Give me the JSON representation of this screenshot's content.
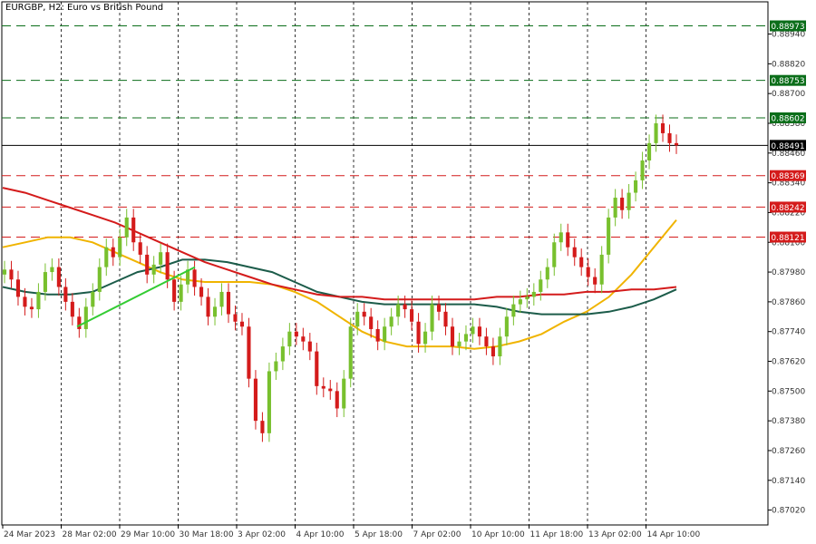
{
  "window": {
    "title": "EURGBP, H2:  Euro vs British Pound"
  },
  "chart_data": {
    "type": "candlestick",
    "symbol": "EURGBP",
    "timeframe": "H2",
    "title": "EURGBP, H2:  Euro vs British Pound",
    "ylim": [
      0.8696,
      0.8907
    ],
    "y_ticks": [
      "0.88940",
      "0.88820",
      "0.88700",
      "0.88580",
      "0.88460",
      "0.88340",
      "0.88220",
      "0.88100",
      "0.87980",
      "0.87860",
      "0.87740",
      "0.87620",
      "0.87500",
      "0.87380",
      "0.87260",
      "0.87140",
      "0.87020"
    ],
    "x_labels": [
      "24 Mar 2023",
      "28 Mar 02:00",
      "29 Mar 10:00",
      "30 Mar 18:00",
      "3 Apr 02:00",
      "4 Apr 10:00",
      "5 Apr 18:00",
      "7 Apr 02:00",
      "10 Apr 10:00",
      "11 Apr 18:00",
      "13 Apr 02:00",
      "14 Apr 10:00"
    ],
    "current_price": {
      "label": "0.88491",
      "value": 0.88491,
      "color": "#000000"
    },
    "levels": [
      {
        "label": "0.88973",
        "value": 0.88973,
        "kind": "resistance",
        "color": "#0b6e1a"
      },
      {
        "label": "0.88753",
        "value": 0.88753,
        "kind": "resistance",
        "color": "#0b6e1a"
      },
      {
        "label": "0.88602",
        "value": 0.88602,
        "kind": "resistance",
        "color": "#0b6e1a"
      },
      {
        "label": "0.88369",
        "value": 0.88369,
        "kind": "support",
        "color": "#d41b1b"
      },
      {
        "label": "0.88242",
        "value": 0.88242,
        "kind": "support",
        "color": "#d41b1b"
      },
      {
        "label": "0.88121",
        "value": 0.88121,
        "kind": "support",
        "color": "#d41b1b"
      }
    ],
    "candles_close": [
      0.8799,
      0.8795,
      0.8788,
      0.8784,
      0.8783,
      0.879,
      0.8798,
      0.88,
      0.8792,
      0.8786,
      0.878,
      0.8775,
      0.8784,
      0.879,
      0.88,
      0.8808,
      0.8804,
      0.8812,
      0.882,
      0.881,
      0.8805,
      0.8797,
      0.8801,
      0.8806,
      0.8795,
      0.8786,
      0.8793,
      0.8799,
      0.8792,
      0.8788,
      0.878,
      0.8784,
      0.879,
      0.8781,
      0.8778,
      0.8776,
      0.8755,
      0.8738,
      0.8733,
      0.8758,
      0.8762,
      0.8768,
      0.8774,
      0.8772,
      0.877,
      0.8766,
      0.8752,
      0.8751,
      0.875,
      0.8743,
      0.8755,
      0.8776,
      0.8782,
      0.878,
      0.8775,
      0.877,
      0.8776,
      0.878,
      0.8785,
      0.8783,
      0.8778,
      0.8769,
      0.8774,
      0.8785,
      0.8782,
      0.8776,
      0.8768,
      0.877,
      0.8773,
      0.8776,
      0.8772,
      0.8768,
      0.8764,
      0.8772,
      0.878,
      0.8785,
      0.8787,
      0.8788,
      0.879,
      0.8795,
      0.88,
      0.881,
      0.8814,
      0.8808,
      0.8804,
      0.88,
      0.8796,
      0.8793,
      0.8805,
      0.882,
      0.8828,
      0.8823,
      0.883,
      0.8835,
      0.8843,
      0.885,
      0.8858,
      0.8854,
      0.885,
      0.88491
    ],
    "moving_averages": [
      {
        "color": "#f0b400",
        "values": [
          0.8808,
          0.881,
          0.8812,
          0.8812,
          0.881,
          0.8806,
          0.8802,
          0.8798,
          0.8795,
          0.8794,
          0.8794,
          0.8794,
          0.8793,
          0.879,
          0.8786,
          0.878,
          0.8774,
          0.877,
          0.8768,
          0.8768,
          0.8768,
          0.8767,
          0.8768,
          0.877,
          0.8773,
          0.8778,
          0.8782,
          0.8788,
          0.8797,
          0.8808,
          0.8819
        ]
      },
      {
        "color": "#1c5c4a",
        "values": [
          0.8792,
          0.879,
          0.8789,
          0.8789,
          0.879,
          0.8794,
          0.8798,
          0.88,
          0.8803,
          0.8803,
          0.8802,
          0.88,
          0.8798,
          0.8794,
          0.879,
          0.8788,
          0.8786,
          0.8785,
          0.8785,
          0.8785,
          0.8785,
          0.8785,
          0.8784,
          0.8782,
          0.8781,
          0.8781,
          0.8781,
          0.8782,
          0.8784,
          0.8787,
          0.8791
        ]
      },
      {
        "color": "#d41b1b",
        "values": [
          0.8832,
          0.883,
          0.8827,
          0.8824,
          0.8821,
          0.8818,
          0.8814,
          0.881,
          0.8806,
          0.8802,
          0.8799,
          0.8796,
          0.8793,
          0.8791,
          0.8789,
          0.8788,
          0.8788,
          0.8787,
          0.8787,
          0.8787,
          0.8787,
          0.8787,
          0.8788,
          0.8788,
          0.8789,
          0.8789,
          0.879,
          0.879,
          0.8791,
          0.8791,
          0.8792
        ]
      }
    ],
    "trendline": {
      "color": "#33cc33",
      "from": 0.8776,
      "to": 0.88
    },
    "grid": true
  }
}
